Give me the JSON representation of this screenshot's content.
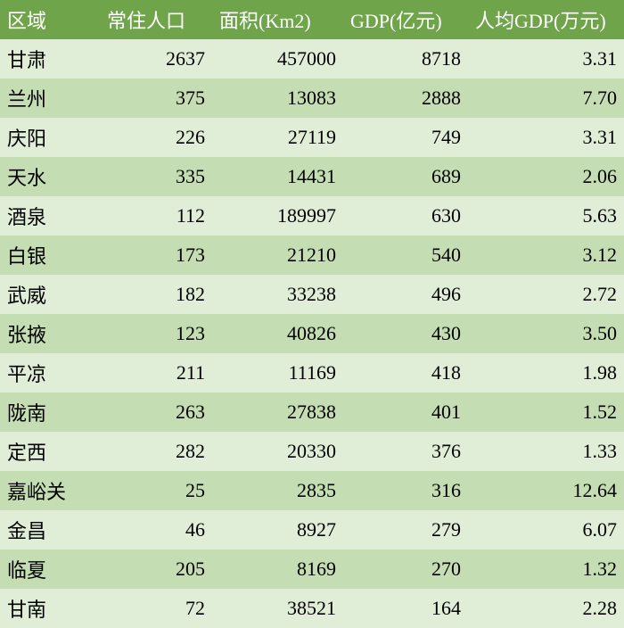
{
  "table": {
    "header_bg": "#70a44b",
    "header_color": "#ffffff",
    "row_odd_bg": "#e1eed7",
    "row_even_bg": "#c4ddb2",
    "text_color": "#000000",
    "columns": [
      {
        "key": "region",
        "label": "区域",
        "align": "left"
      },
      {
        "key": "pop",
        "label": "常住人口",
        "align": "right"
      },
      {
        "key": "area",
        "label": "面积(Km2)",
        "align": "right"
      },
      {
        "key": "gdp",
        "label": "GDP(亿元)",
        "align": "right"
      },
      {
        "key": "pcgdp",
        "label": "人均GDP(万元)",
        "align": "right"
      }
    ],
    "rows": [
      {
        "region": "甘肃",
        "pop": "2637",
        "area": "457000",
        "gdp": "8718",
        "pcgdp": "3.31"
      },
      {
        "region": "兰州",
        "pop": "375",
        "area": "13083",
        "gdp": "2888",
        "pcgdp": "7.70"
      },
      {
        "region": "庆阳",
        "pop": "226",
        "area": "27119",
        "gdp": "749",
        "pcgdp": "3.31"
      },
      {
        "region": "天水",
        "pop": "335",
        "area": "14431",
        "gdp": "689",
        "pcgdp": "2.06"
      },
      {
        "region": "酒泉",
        "pop": "112",
        "area": "189997",
        "gdp": "630",
        "pcgdp": "5.63"
      },
      {
        "region": "白银",
        "pop": "173",
        "area": "21210",
        "gdp": "540",
        "pcgdp": "3.12"
      },
      {
        "region": "武威",
        "pop": "182",
        "area": "33238",
        "gdp": "496",
        "pcgdp": "2.72"
      },
      {
        "region": "张掖",
        "pop": "123",
        "area": "40826",
        "gdp": "430",
        "pcgdp": "3.50"
      },
      {
        "region": "平凉",
        "pop": "211",
        "area": "11169",
        "gdp": "418",
        "pcgdp": "1.98"
      },
      {
        "region": "陇南",
        "pop": "263",
        "area": "27838",
        "gdp": "401",
        "pcgdp": "1.52"
      },
      {
        "region": "定西",
        "pop": "282",
        "area": "20330",
        "gdp": "376",
        "pcgdp": "1.33"
      },
      {
        "region": "嘉峪关",
        "pop": "25",
        "area": "2835",
        "gdp": "316",
        "pcgdp": "12.64"
      },
      {
        "region": "金昌",
        "pop": "46",
        "area": "8927",
        "gdp": "279",
        "pcgdp": "6.07"
      },
      {
        "region": "临夏",
        "pop": "205",
        "area": "8169",
        "gdp": "270",
        "pcgdp": "1.32"
      },
      {
        "region": "甘南",
        "pop": "72",
        "area": "38521",
        "gdp": "164",
        "pcgdp": "2.28"
      }
    ]
  }
}
